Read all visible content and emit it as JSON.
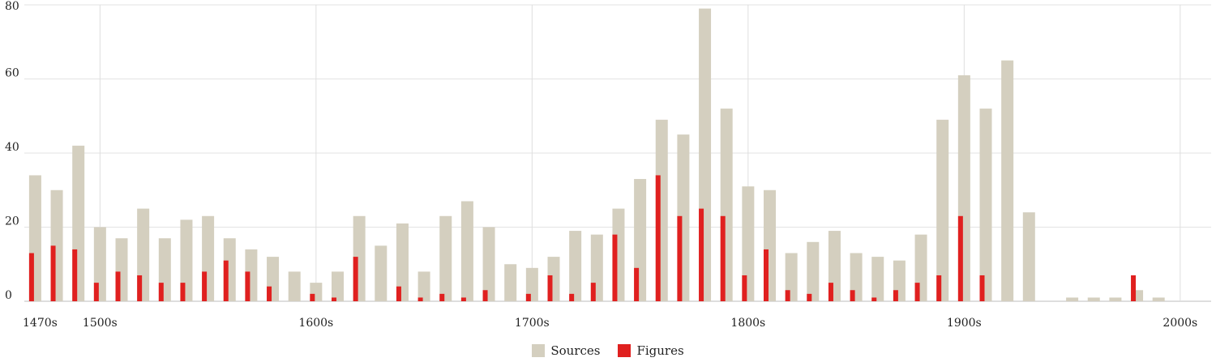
{
  "chart_data": {
    "type": "bar",
    "ylim": [
      0,
      80
    ],
    "y_ticks": [
      0,
      20,
      40,
      60,
      80
    ],
    "x_ticks": [
      "1470s",
      "1500s",
      "1600s",
      "1700s",
      "1800s",
      "1900s",
      "2000s"
    ],
    "grid": true,
    "legend_position": "bottom-center",
    "categories": [
      "1470s",
      "1480s",
      "1490s",
      "1500s",
      "1510s",
      "1520s",
      "1530s",
      "1540s",
      "1550s",
      "1560s",
      "1570s",
      "1580s",
      "1590s",
      "1600s",
      "1610s",
      "1620s",
      "1630s",
      "1640s",
      "1650s",
      "1660s",
      "1670s",
      "1680s",
      "1690s",
      "1700s",
      "1710s",
      "1720s",
      "1730s",
      "1740s",
      "1750s",
      "1760s",
      "1770s",
      "1780s",
      "1790s",
      "1800s",
      "1810s",
      "1820s",
      "1830s",
      "1840s",
      "1850s",
      "1860s",
      "1870s",
      "1880s",
      "1890s",
      "1900s",
      "1910s",
      "1920s",
      "1930s",
      "1940s",
      "1950s",
      "1960s",
      "1970s",
      "1980s",
      "1990s",
      "2000s",
      "2010s"
    ],
    "series": [
      {
        "name": "Sources",
        "color": "#d4cfbf",
        "values": [
          34,
          30,
          42,
          20,
          17,
          25,
          17,
          22,
          23,
          17,
          14,
          12,
          8,
          5,
          8,
          23,
          15,
          21,
          8,
          23,
          27,
          20,
          10,
          9,
          12,
          19,
          18,
          25,
          33,
          49,
          45,
          79,
          52,
          31,
          30,
          13,
          16,
          19,
          13,
          12,
          11,
          18,
          49,
          61,
          52,
          65,
          24,
          0,
          1,
          1,
          1,
          3,
          1,
          0,
          0
        ]
      },
      {
        "name": "Figures",
        "color": "#e0201f",
        "values": [
          13,
          15,
          14,
          5,
          8,
          7,
          5,
          5,
          8,
          11,
          8,
          4,
          0,
          2,
          1,
          12,
          0,
          4,
          1,
          2,
          1,
          3,
          0,
          2,
          7,
          2,
          5,
          18,
          9,
          34,
          23,
          25,
          23,
          7,
          14,
          3,
          2,
          5,
          3,
          1,
          3,
          5,
          7,
          23,
          7,
          0,
          0,
          0,
          0,
          0,
          0,
          7,
          0,
          0,
          0
        ]
      }
    ]
  }
}
